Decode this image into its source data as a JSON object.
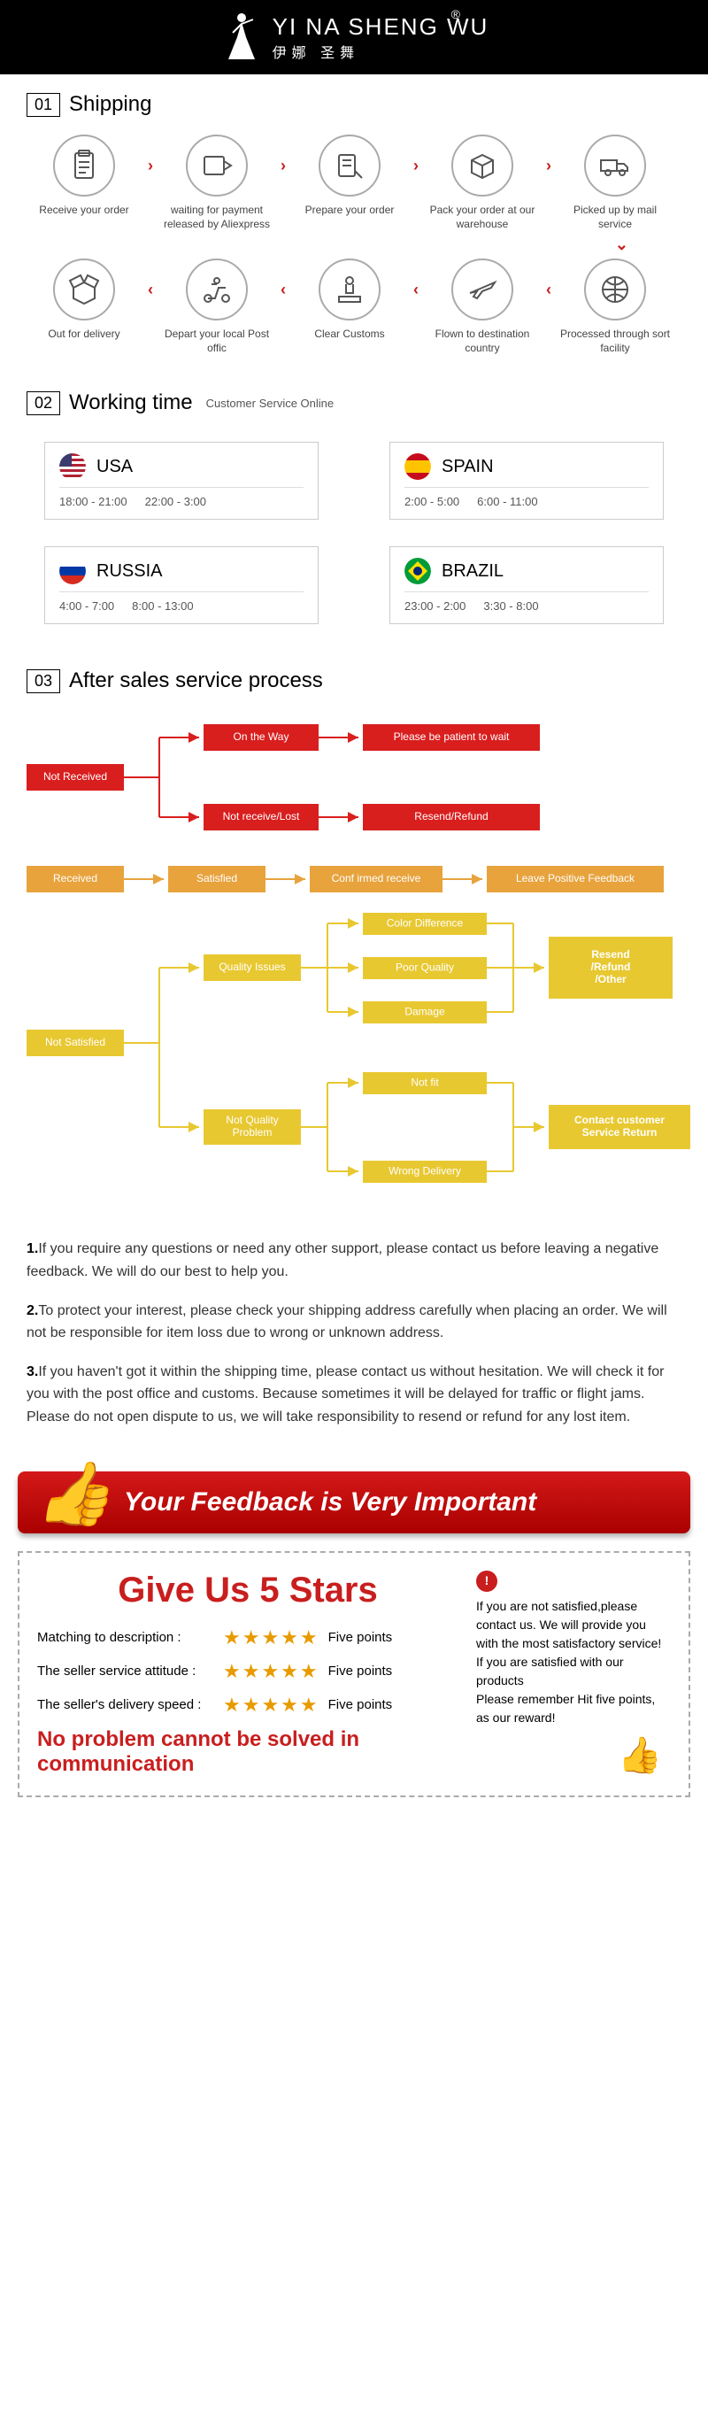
{
  "header": {
    "en": "YI NA SHENG WU",
    "cn": "伊娜 圣舞",
    "r": "®"
  },
  "sections": {
    "shipping": {
      "num": "01",
      "title": "Shipping"
    },
    "working": {
      "num": "02",
      "title": "Working time",
      "sub": "Customer Service Online"
    },
    "after": {
      "num": "03",
      "title": "After sales service process"
    }
  },
  "ship_steps": {
    "s1": "Receive your order",
    "s2": "waiting for payment released by Aliexpress",
    "s3": "Prepare your order",
    "s4": "Pack your order at our warehouse",
    "s5": "Picked up by mail service",
    "s6": "Out for delivery",
    "s7": "Depart your local Post offic",
    "s8": "Clear Customs",
    "s9": "Flown to destination country",
    "s10": "Processed through sort facility"
  },
  "countries": [
    {
      "name": "USA",
      "t1": "18:00 - 21:00",
      "t2": "22:00 - 3:00",
      "flag": {
        "bg": "#fff",
        "stripes": "#b22234",
        "canton": "#3c3b6e"
      }
    },
    {
      "name": "SPAIN",
      "t1": "2:00 - 5:00",
      "t2": "6:00 - 11:00",
      "flag": {
        "bg": "#ffc400",
        "stripes": "#c60b1e",
        "canton": ""
      }
    },
    {
      "name": "RUSSIA",
      "t1": "4:00 - 7:00",
      "t2": "8:00 - 13:00",
      "flag": {
        "bg": "#fff",
        "mid": "#0039a6",
        "bot": "#d52b1e"
      }
    },
    {
      "name": "BRAZIL",
      "t1": "23:00 - 2:00",
      "t2": "3:30 - 8:00",
      "flag": {
        "bg": "#009b3a",
        "diamond": "#fedf00",
        "circle": "#002776"
      }
    }
  ],
  "flow": {
    "colors": {
      "red": "#d91e1e",
      "orange": "#e8a33d",
      "yellow": "#e8c831",
      "line_red": "#d91e1e",
      "line_yellow": "#e8c831",
      "line_orange": "#e8a33d"
    },
    "labels": {
      "not_received": "Not Received",
      "on_way": "On the Way",
      "patient": "Please be patient to wait",
      "not_lost": "Not receive/Lost",
      "resend": "Resend/Refund",
      "received": "Received",
      "satisfied": "Satisfied",
      "confirmed": "Conf irmed receive",
      "positive": "Leave Positive Feedback",
      "not_satisfied": "Not Satisfied",
      "quality": "Quality Issues",
      "color_diff": "Color Difference",
      "poor": "Poor Quality",
      "damage": "Damage",
      "resend2a": "Resend",
      "resend2b": "/Refund",
      "resend2c": "/Other",
      "not_quality1": "Not Quality",
      "not_quality2": "Problem",
      "not_fit": "Not fit",
      "wrong": "Wrong Delivery",
      "contact1": "Contact customer",
      "contact2": "Service Return"
    }
  },
  "notes": {
    "n1b": "1.",
    "n1": "If you require any questions or need any other support, please contact us before leaving a negative feedback. We will do our best to help you.",
    "n2b": "2.",
    "n2": "To protect your interest, please check your shipping address carefully when placing an order. We will not be responsible for item loss due to wrong or unknown address.",
    "n3b": "3.",
    "n3": "If you haven't got it within the shipping time, please contact us without hesitation. We will check it for you with the post office and customs. Because sometimes it will be delayed for traffic or flight jams. Please do not open dispute to us, we will take responsibility to resend or refund for any lost item."
  },
  "feedback_banner": "Your Feedback is Very Important",
  "stars": {
    "title": "Give Us 5 Stars",
    "rows": [
      {
        "label": "Matching to description :",
        "pts": "Five points"
      },
      {
        "label": "The seller service attitude :",
        "pts": "Five points"
      },
      {
        "label": "The seller's delivery speed :",
        "pts": "Five points"
      }
    ],
    "footer": "No problem cannot be solved in communication",
    "right": "If you are not satisfied,please contact us. We will provide you with the most satisfactory service!\nIf you are satisfied with our products\nPlease remember Hit five points, as our reward!"
  }
}
